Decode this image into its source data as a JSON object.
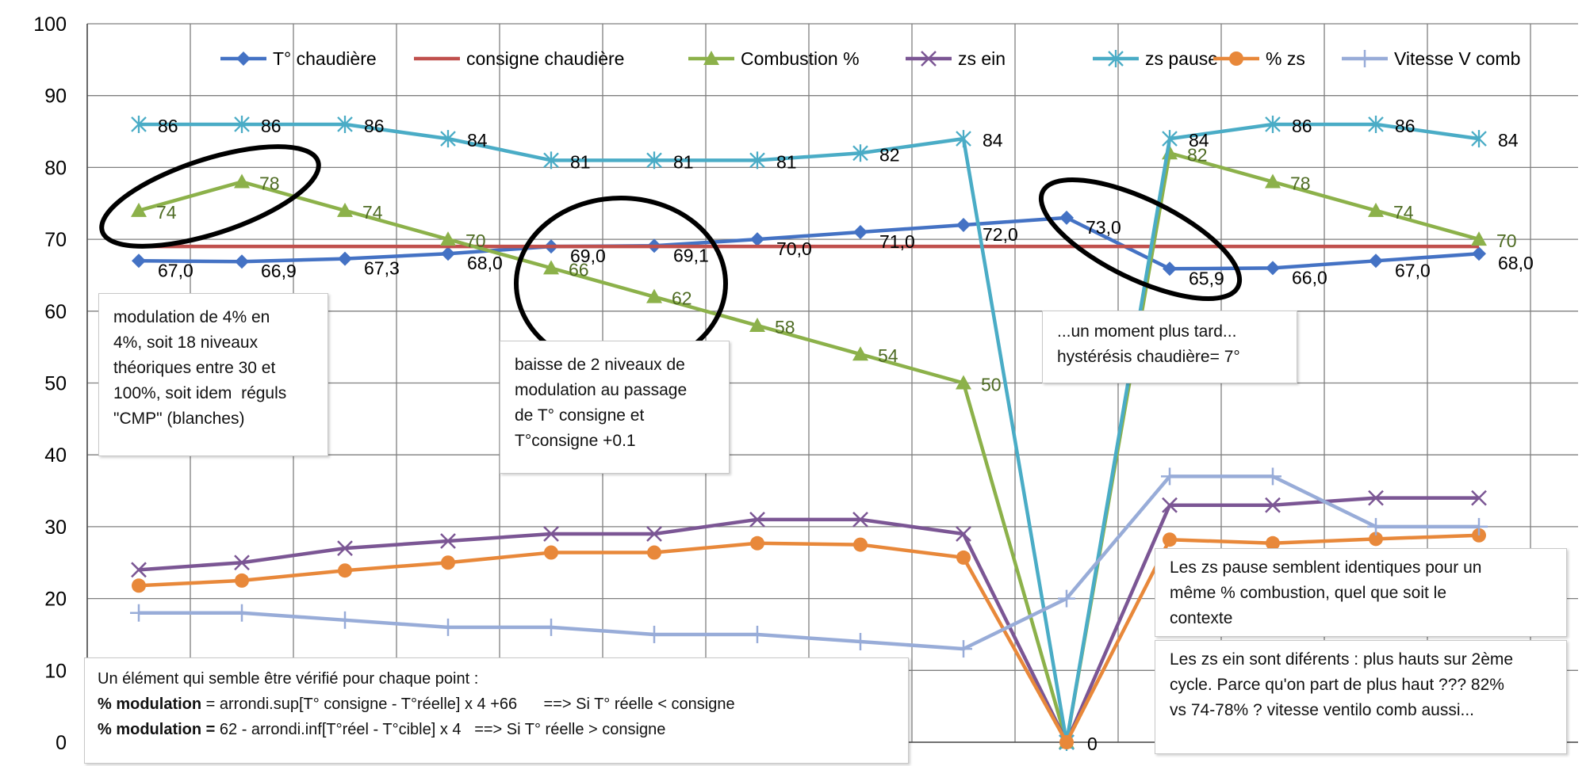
{
  "chart_data": {
    "type": "line",
    "title": "",
    "xlabel": "",
    "ylabel": "",
    "ylim": [
      0,
      100
    ],
    "y_ticks": [
      "0",
      "10",
      "20",
      "30",
      "40",
      "50",
      "60",
      "70",
      "80",
      "90",
      "100"
    ],
    "x": [
      1,
      2,
      3,
      4,
      5,
      6,
      7,
      8,
      9,
      10,
      11,
      12,
      13,
      14
    ],
    "grid": true,
    "legend_position": "top",
    "series": [
      {
        "name": "T° chaudière",
        "color": "#4472c4",
        "marker": "diamond",
        "values": [
          67.0,
          66.9,
          67.3,
          68.0,
          69.0,
          69.1,
          70.0,
          71.0,
          72.0,
          73.0,
          65.9,
          66.0,
          67.0,
          68.0
        ],
        "labels": [
          "67,0",
          "66,9",
          "67,3",
          "68,0",
          "69,0",
          "69,1",
          "70,0",
          "71,0",
          "72,0",
          "73,0",
          "65,9",
          "66,0",
          "67,0",
          "68,0"
        ]
      },
      {
        "name": "consigne chaudière",
        "color": "#c0504d",
        "marker": "none",
        "values": [
          69,
          69,
          69,
          69,
          69,
          69,
          69,
          69,
          69,
          69,
          69,
          69,
          69,
          69
        ],
        "labels": []
      },
      {
        "name": "Combustion %",
        "color": "#8cb14a",
        "marker": "triangle",
        "values": [
          74,
          78,
          74,
          70,
          66,
          62,
          58,
          54,
          50,
          0,
          82,
          78,
          74,
          70
        ],
        "labels": [
          "74",
          "78",
          "74",
          "70",
          "66",
          "62",
          "58",
          "54",
          "50",
          "",
          "82",
          "78",
          "74",
          "70"
        ]
      },
      {
        "name": "zs ein",
        "color": "#7b5694",
        "marker": "x",
        "values": [
          24,
          25,
          27,
          28,
          29,
          29,
          31,
          31,
          29,
          0,
          33,
          33,
          34,
          34
        ],
        "labels": []
      },
      {
        "name": "zs pause",
        "color": "#4aacc6",
        "marker": "star",
        "values": [
          86,
          86,
          86,
          84,
          81,
          81,
          81,
          82,
          84,
          0,
          84,
          86,
          86,
          84
        ],
        "labels": [
          "86",
          "86",
          "86",
          "84",
          "81",
          "81",
          "81",
          "82",
          "84",
          "",
          "84",
          "86",
          "86",
          "84"
        ]
      },
      {
        "name": "% zs",
        "color": "#e8883a",
        "marker": "circle",
        "values": [
          21.8,
          22.5,
          23.9,
          25.0,
          26.4,
          26.4,
          27.7,
          27.5,
          25.7,
          0,
          28.2,
          27.7,
          28.3,
          28.8
        ],
        "labels": [
          "",
          "",
          "",
          "",
          "",
          "",
          "",
          "",
          "",
          "0",
          "",
          "",
          "",
          ""
        ]
      },
      {
        "name": "Vitesse V comb",
        "color": "#98acd8",
        "marker": "plus",
        "values": [
          18,
          18,
          17,
          16,
          16,
          15,
          15,
          14,
          13,
          20,
          37,
          37,
          30,
          30
        ],
        "labels": []
      }
    ]
  },
  "annotations": {
    "note_modulation": {
      "lines": [
        "modulation de 4% en",
        "4%, soit 18 niveaux",
        "théoriques entre 30 et",
        "100%, soit idem  réguls",
        "\"CMP\" (blanches)"
      ]
    },
    "note_baisse": {
      "lines": [
        "baisse de 2 niveaux de",
        "modulation au passage",
        "de T° consigne et",
        "T°consigne +0.1"
      ]
    },
    "note_moment": {
      "lines": [
        "...un moment plus tard...",
        "hystérésis chaudière= 7°"
      ]
    },
    "note_zs_pause": {
      "lines": [
        "Les zs pause semblent identiques pour un",
        "même % combustion, quel que soit le",
        "contexte"
      ]
    },
    "note_zs_ein": {
      "lines": [
        "Les zs ein sont diférents : plus hauts sur 2ème",
        "cycle. Parce qu'on part de plus haut ??? 82%",
        "vs 74-78% ? vitesse ventilo comb aussi..."
      ]
    },
    "note_formula": {
      "line1": "Un élément qui semble être vérifié pour chaque point :",
      "line2_bold": "% modulation",
      "line2_rest": " = arrondi.sup[T° consigne - T°réelle] x 4 +66      ==> Si T° réelle < consigne",
      "line3_bold": "% modulation =",
      "line3_rest": " 62 - arrondi.inf[T°réel - T°cible] x 4   ==> Si T° réelle > consigne"
    }
  }
}
